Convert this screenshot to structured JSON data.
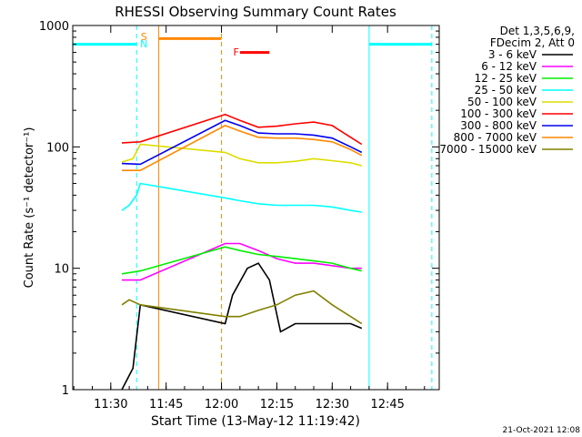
{
  "chart_data": {
    "type": "line",
    "title": "RHESSI Observing Summary Count Rates",
    "xlabel": "Start Time (13-May-12 11:19:42)",
    "ylabel": "Count Rate (s⁻¹ detector⁻¹)",
    "yscale": "log",
    "xlim": [
      "11:19:42",
      "12:59:00"
    ],
    "ylim": [
      1,
      1000
    ],
    "xticks": [
      "11:30",
      "11:45",
      "12:00",
      "12:15",
      "12:30",
      "12:45"
    ],
    "yticks": [
      "1",
      "10",
      "100",
      "1000"
    ],
    "legend_header": [
      "Det 1,3,5,6,9,",
      "FDecim 2, Att 0"
    ],
    "legend_position": "outside-right",
    "timestamp": "21-Oct-2021 12:08",
    "series": [
      {
        "name": "3 - 6 keV",
        "color": "#000000",
        "x": [
          "11:33",
          "11:36",
          "11:38",
          "12:01",
          "12:03",
          "12:07",
          "12:10",
          "12:13",
          "12:16",
          "12:20",
          "12:25",
          "12:30",
          "12:35",
          "12:38"
        ],
        "values": [
          1.0,
          1.5,
          5,
          3.5,
          6,
          10,
          11,
          8,
          3,
          3.5,
          3.5,
          3.5,
          3.5,
          3.2
        ]
      },
      {
        "name": "6 - 12 keV",
        "color": "#ff00ff",
        "x": [
          "11:33",
          "11:38",
          "12:01",
          "12:05",
          "12:10",
          "12:15",
          "12:20",
          "12:25",
          "12:30",
          "12:35",
          "12:38"
        ],
        "values": [
          8,
          8,
          16,
          16,
          14,
          12,
          11,
          11,
          10.5,
          10,
          10
        ]
      },
      {
        "name": "12 - 25 keV",
        "color": "#00ee00",
        "x": [
          "11:33",
          "11:38",
          "12:01",
          "12:05",
          "12:10",
          "12:15",
          "12:20",
          "12:25",
          "12:30",
          "12:35",
          "12:38"
        ],
        "values": [
          9,
          9.5,
          15,
          14,
          13,
          12.5,
          12,
          11.5,
          11,
          10,
          9.5
        ]
      },
      {
        "name": "25 - 50 keV",
        "color": "#00ffff",
        "x": [
          "11:33",
          "11:35",
          "11:37",
          "11:38",
          "12:01",
          "12:05",
          "12:10",
          "12:15",
          "12:20",
          "12:25",
          "12:30",
          "12:35",
          "12:38"
        ],
        "values": [
          30,
          33,
          40,
          50,
          38,
          36,
          34,
          33,
          33,
          33,
          32,
          30,
          29
        ]
      },
      {
        "name": "50 - 100 keV",
        "color": "#dddd00",
        "x": [
          "11:33",
          "11:36",
          "11:38",
          "12:01",
          "12:05",
          "12:10",
          "12:15",
          "12:20",
          "12:25",
          "12:30",
          "12:35",
          "12:38"
        ],
        "values": [
          75,
          80,
          105,
          90,
          80,
          74,
          74,
          76,
          80,
          77,
          74,
          70
        ]
      },
      {
        "name": "100 - 300 keV",
        "color": "#ff0000",
        "x": [
          "11:33",
          "11:38",
          "12:01",
          "12:05",
          "12:10",
          "12:15",
          "12:20",
          "12:25",
          "12:30",
          "12:35",
          "12:38"
        ],
        "values": [
          108,
          110,
          185,
          165,
          145,
          148,
          155,
          160,
          150,
          120,
          105
        ]
      },
      {
        "name": "300 - 800 keV",
        "color": "#0000ee",
        "x": [
          "11:33",
          "11:38",
          "12:01",
          "12:05",
          "12:10",
          "12:15",
          "12:20",
          "12:25",
          "12:30",
          "12:35",
          "12:38"
        ],
        "values": [
          73,
          72,
          165,
          150,
          130,
          128,
          128,
          125,
          118,
          100,
          90
        ]
      },
      {
        "name": "800 - 7000 keV",
        "color": "#ff8800",
        "x": [
          "11:33",
          "11:38",
          "12:01",
          "12:05",
          "12:10",
          "12:15",
          "12:20",
          "12:25",
          "12:30",
          "12:35",
          "12:38"
        ],
        "values": [
          64,
          64,
          150,
          135,
          120,
          118,
          118,
          115,
          110,
          95,
          85
        ]
      },
      {
        "name": "7000 - 15000 keV",
        "color": "#808000",
        "x": [
          "11:33",
          "11:35",
          "11:38",
          "12:01",
          "12:05",
          "12:10",
          "12:15",
          "12:20",
          "12:25",
          "12:30",
          "12:35",
          "12:38"
        ],
        "values": [
          5,
          5.5,
          5,
          4,
          4,
          4.5,
          5,
          6,
          6.5,
          5,
          4,
          3.5
        ]
      }
    ],
    "markers": [
      {
        "label": "S",
        "color": "#ff8800",
        "x": "11:38"
      },
      {
        "label": "N",
        "color": "#00ffff",
        "x": "11:38"
      },
      {
        "label": "F",
        "color": "#ff0000",
        "x": "12:02"
      }
    ],
    "intervals": {
      "night": {
        "color": "#00ffff",
        "level": 700,
        "ranges": [
          [
            "11:19:42",
            "11:37"
          ],
          [
            "12:40",
            "12:57"
          ]
        ]
      },
      "saa": {
        "color": "#ff8800",
        "level": 780,
        "ranges": [
          [
            "11:43",
            "12:00"
          ]
        ]
      },
      "flare": {
        "color": "#ff0000",
        "level": 600,
        "ranges": [
          [
            "12:05",
            "12:13"
          ]
        ]
      }
    }
  }
}
